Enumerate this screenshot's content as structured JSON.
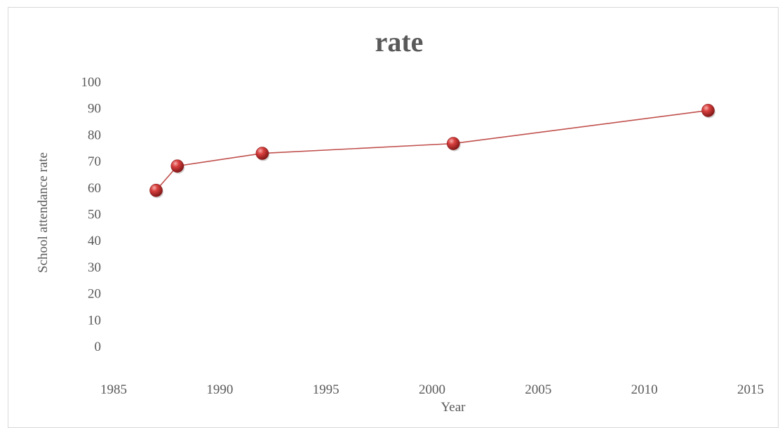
{
  "chart_data": {
    "type": "scatter",
    "title": "rate",
    "xlabel": "Year",
    "ylabel": "School attendance rate",
    "xlim": [
      1985,
      2015
    ],
    "ylim": [
      0,
      100
    ],
    "x_ticks": [
      "1985",
      "1990",
      "1995",
      "2000",
      "2005",
      "2010",
      "2015"
    ],
    "y_ticks": [
      "0",
      "10",
      "20",
      "30",
      "40",
      "50",
      "60",
      "70",
      "80",
      "90",
      "100"
    ],
    "grid": false,
    "legend": "none",
    "series": [
      {
        "points": [
          {
            "x": 1987,
            "y": 58.8
          },
          {
            "x": 1988,
            "y": 68.0
          },
          {
            "x": 1992,
            "y": 72.8
          },
          {
            "x": 2001,
            "y": 76.5
          },
          {
            "x": 2013,
            "y": 89.0
          }
        ]
      }
    ],
    "colors": {
      "line": "#c0504d",
      "marker": "#c0393b",
      "text": "#595959",
      "border": "#d9d9d9"
    }
  }
}
